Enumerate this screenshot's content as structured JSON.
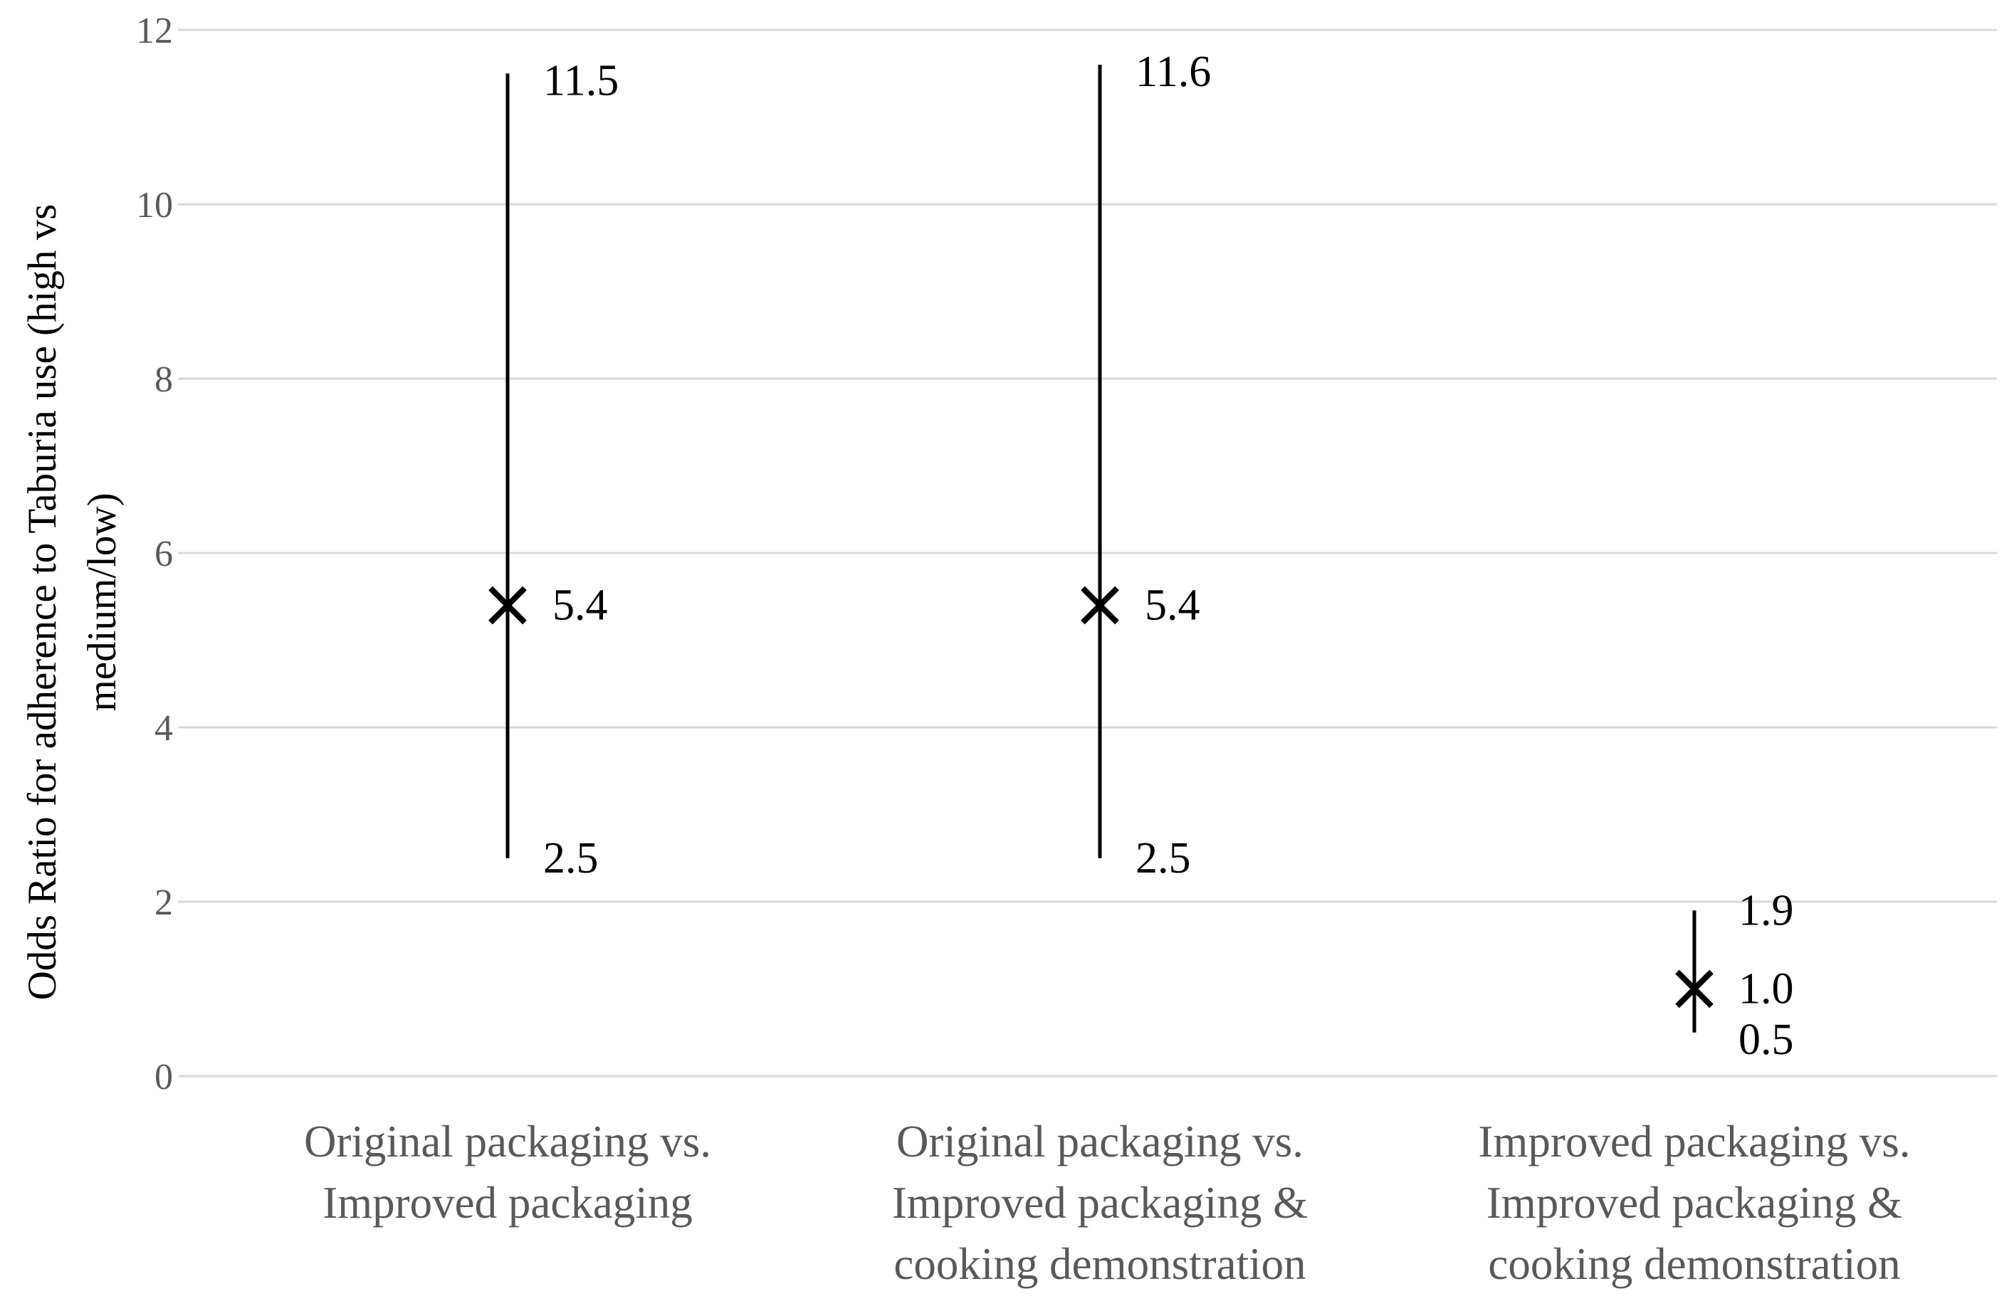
{
  "chart_data": {
    "type": "scatter",
    "title": "",
    "ylabel": "Odds Ratio for adherence to Taburia use (high vs medium/low)",
    "ylabel_lines": [
      "Odds Ratio for adherence to Taburia use (high vs",
      "medium/low)"
    ],
    "xlabel": "",
    "ylim": [
      0,
      12
    ],
    "yticks": [
      0,
      2,
      4,
      6,
      8,
      10,
      12
    ],
    "grid": true,
    "legend": "none",
    "categories": [
      {
        "lines": [
          "Original packaging vs.",
          "Improved packaging"
        ],
        "or": 5.4,
        "lower": 2.5,
        "upper": 11.5,
        "or_label": "5.4",
        "lower_label": "2.5",
        "upper_label": "11.5"
      },
      {
        "lines": [
          "Original packaging vs.",
          "Improved packaging &",
          "cooking demonstration"
        ],
        "or": 5.4,
        "lower": 2.5,
        "upper": 11.6,
        "or_label": "5.4",
        "lower_label": "2.5",
        "upper_label": "11.6"
      },
      {
        "lines": [
          "Improved packaging  vs.",
          "Improved packaging &",
          "cooking demonstration"
        ],
        "or": 1.0,
        "lower": 0.5,
        "upper": 1.9,
        "or_label": "1.0",
        "lower_label": "0.5",
        "upper_label": "1.9"
      }
    ]
  }
}
